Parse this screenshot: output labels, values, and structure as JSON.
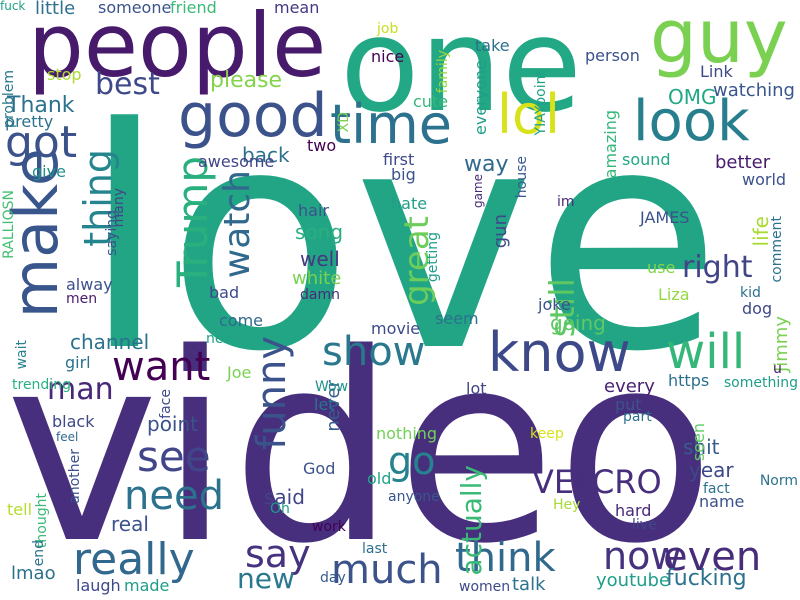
{
  "words": [
    {
      "t": "love",
      "c": "#21a585",
      "o": "h"
    },
    {
      "t": "video",
      "c": "#472f7d",
      "o": "h"
    },
    {
      "t": "one",
      "c": "#22a884",
      "o": "h"
    },
    {
      "t": "people",
      "c": "#481a6c",
      "o": "h"
    },
    {
      "t": "guy",
      "c": "#7ad151",
      "o": "h"
    },
    {
      "t": "make",
      "c": "#39568c",
      "o": "v"
    },
    {
      "t": "good",
      "c": "#3b528b",
      "o": "h"
    },
    {
      "t": "time",
      "c": "#2c728e",
      "o": "h"
    },
    {
      "t": "lol",
      "c": "#d8e219",
      "o": "h"
    },
    {
      "t": "look",
      "c": "#277f8e",
      "o": "h"
    },
    {
      "t": "know",
      "c": "#3e4989",
      "o": "h"
    },
    {
      "t": "will",
      "c": "#35b779",
      "o": "h"
    },
    {
      "t": "Trump",
      "c": "#2ab07f",
      "o": "v"
    },
    {
      "t": "thing",
      "c": "#25858e",
      "o": "v"
    },
    {
      "t": "got",
      "c": "#3b528b",
      "o": "h"
    },
    {
      "t": "best",
      "c": "#3e4989",
      "o": "h"
    },
    {
      "t": "want",
      "c": "#440154",
      "o": "h"
    },
    {
      "t": "right",
      "c": "#414487",
      "o": "h"
    },
    {
      "t": "show",
      "c": "#2a788e",
      "o": "h"
    },
    {
      "t": "watch",
      "c": "#31688e",
      "o": "v"
    },
    {
      "t": "funny",
      "c": "#3b528b",
      "o": "v"
    },
    {
      "t": "see",
      "c": "#404688",
      "o": "h"
    },
    {
      "t": "need",
      "c": "#2c728e",
      "o": "h"
    },
    {
      "t": "really",
      "c": "#31688e",
      "o": "h"
    },
    {
      "t": "say",
      "c": "#46327e",
      "o": "h"
    },
    {
      "t": "much",
      "c": "#3b528b",
      "o": "h"
    },
    {
      "t": "think",
      "c": "#31688e",
      "o": "h"
    },
    {
      "t": "now",
      "c": "#46327e",
      "o": "h"
    },
    {
      "t": "even",
      "c": "#472c7a",
      "o": "h"
    },
    {
      "t": "VELCRO",
      "c": "#472f7d",
      "o": "h"
    },
    {
      "t": "go",
      "c": "#26828e",
      "o": "h"
    },
    {
      "t": "great",
      "c": "#6ccd5a",
      "o": "v"
    },
    {
      "t": "still",
      "c": "#5ec962",
      "o": "v"
    },
    {
      "t": "man",
      "c": "#482878",
      "o": "h"
    },
    {
      "t": "new",
      "c": "#2a788e",
      "o": "h"
    },
    {
      "t": "fucking",
      "c": "#2c728e",
      "o": "h"
    },
    {
      "t": "actually",
      "c": "#3aba76",
      "o": "v"
    },
    {
      "t": "please",
      "c": "#84d44b",
      "o": "h"
    },
    {
      "t": "Thank",
      "c": "#2c728e",
      "o": "h"
    },
    {
      "t": "back",
      "c": "#2d708e",
      "o": "h"
    },
    {
      "t": "way",
      "c": "#31688e",
      "o": "h"
    },
    {
      "t": "OMG",
      "c": "#22a884",
      "o": "h"
    },
    {
      "t": "gun",
      "c": "#3e4989",
      "o": "v"
    },
    {
      "t": "song",
      "c": "#29af7f",
      "o": "h"
    },
    {
      "t": "well",
      "c": "#453781",
      "o": "h"
    },
    {
      "t": "white",
      "c": "#7ad151",
      "o": "h"
    },
    {
      "t": "channel",
      "c": "#2c728e",
      "o": "h"
    },
    {
      "t": "going",
      "c": "#5ec962",
      "o": "h"
    },
    {
      "t": "year",
      "c": "#3e4989",
      "o": "h"
    },
    {
      "t": "shit",
      "c": "#365c8d",
      "o": "h"
    },
    {
      "t": "life",
      "c": "#a8db34",
      "o": "v"
    },
    {
      "t": "said",
      "c": "#414487",
      "o": "h"
    },
    {
      "t": "never",
      "c": "#365c8d",
      "o": "v"
    },
    {
      "t": "point",
      "c": "#3b528b",
      "o": "h"
    },
    {
      "t": "every",
      "c": "#482173",
      "o": "h"
    },
    {
      "t": "real",
      "c": "#3b528b",
      "o": "h"
    },
    {
      "t": "youtube",
      "c": "#1f9e89",
      "o": "h"
    },
    {
      "t": "little",
      "c": "#2d708e",
      "o": "h"
    },
    {
      "t": "someone",
      "c": "#3b528b",
      "o": "h"
    },
    {
      "t": "friend",
      "c": "#3aba76",
      "o": "h"
    },
    {
      "t": "mean",
      "c": "#453781",
      "o": "h"
    },
    {
      "t": "job",
      "c": "#c8e020",
      "o": "h"
    },
    {
      "t": "nice",
      "c": "#440154",
      "o": "h"
    },
    {
      "t": "take",
      "c": "#2d708e",
      "o": "h"
    },
    {
      "t": "YIAYpoint",
      "c": "#1fa187",
      "o": "v"
    },
    {
      "t": "person",
      "c": "#3b528b",
      "o": "h"
    },
    {
      "t": "Link",
      "c": "#3e4989",
      "o": "h"
    },
    {
      "t": "watching",
      "c": "#39568c",
      "o": "h"
    },
    {
      "t": "problem",
      "c": "#2a788e",
      "o": "v"
    },
    {
      "t": "stop",
      "c": "#a8db34",
      "o": "h"
    },
    {
      "t": "family",
      "c": "#93d741",
      "o": "v"
    },
    {
      "t": "everyone",
      "c": "#1f9e89",
      "o": "v"
    },
    {
      "t": "XD",
      "c": "#7ad151",
      "o": "v"
    },
    {
      "t": "cute",
      "c": "#35b779",
      "o": "h"
    },
    {
      "t": "pretty",
      "c": "#2c728e",
      "o": "h"
    },
    {
      "t": "two",
      "c": "#440154",
      "o": "h"
    },
    {
      "t": "awesome",
      "c": "#414487",
      "o": "h"
    },
    {
      "t": "first",
      "c": "#3e4989",
      "o": "h"
    },
    {
      "t": "big",
      "c": "#3b528b",
      "o": "h"
    },
    {
      "t": "amazing",
      "c": "#35b779",
      "o": "v"
    },
    {
      "t": "sound",
      "c": "#22a884",
      "o": "h"
    },
    {
      "t": "better",
      "c": "#481a6c",
      "o": "h"
    },
    {
      "t": "world",
      "c": "#3b528b",
      "o": "h"
    },
    {
      "t": "give",
      "c": "#21918c",
      "o": "h"
    },
    {
      "t": "many",
      "c": "#404688",
      "o": "v"
    },
    {
      "t": "RALLIOSN",
      "c": "#44bf70",
      "o": "v"
    },
    {
      "t": "hair",
      "c": "#3b528b",
      "o": "h"
    },
    {
      "t": "hate",
      "c": "#1f9e89",
      "o": "h"
    },
    {
      "t": "game",
      "c": "#482878",
      "o": "v"
    },
    {
      "t": "house",
      "c": "#365c8d",
      "o": "v"
    },
    {
      "t": "im",
      "c": "#482878",
      "o": "h"
    },
    {
      "t": "JAMES",
      "c": "#3b528b",
      "o": "h"
    },
    {
      "t": "comment",
      "c": "#2c728e",
      "o": "v"
    },
    {
      "t": "saying",
      "c": "#3b528b",
      "o": "v"
    },
    {
      "t": "alway",
      "c": "#3b528b",
      "o": "h"
    },
    {
      "t": "men",
      "c": "#481a6c",
      "o": "h"
    },
    {
      "t": "bad",
      "c": "#3e4989",
      "o": "h"
    },
    {
      "t": "damn",
      "c": "#472c7a",
      "o": "h"
    },
    {
      "t": "getting",
      "c": "#1f9e89",
      "o": "v"
    },
    {
      "t": "use",
      "c": "#84d44b",
      "o": "h"
    },
    {
      "t": "Liza",
      "c": "#93d741",
      "o": "h"
    },
    {
      "t": "kid",
      "c": "#2c728e",
      "o": "h"
    },
    {
      "t": "dog",
      "c": "#3e4989",
      "o": "h"
    },
    {
      "t": "come",
      "c": "#31688e",
      "o": "h"
    },
    {
      "t": "joke",
      "c": "#3b528b",
      "o": "h"
    },
    {
      "t": "seem",
      "c": "#2c728e",
      "o": "h"
    },
    {
      "t": "movie",
      "c": "#3e4989",
      "o": "h"
    },
    {
      "t": "Jimmy",
      "c": "#7ad151",
      "o": "v"
    },
    {
      "t": "next",
      "c": "#20a486",
      "o": "h"
    },
    {
      "t": "wait",
      "c": "#26828e",
      "o": "v"
    },
    {
      "t": "girl",
      "c": "#2c728e",
      "o": "h"
    },
    {
      "t": "Joe",
      "c": "#7ad151",
      "o": "h"
    },
    {
      "t": "Wow",
      "c": "#21918c",
      "o": "h"
    },
    {
      "t": "trending",
      "c": "#2ab07f",
      "o": "h"
    },
    {
      "t": "let",
      "c": "#2c728e",
      "o": "h"
    },
    {
      "t": "lot",
      "c": "#404688",
      "o": "h"
    },
    {
      "t": "https",
      "c": "#2d708e",
      "o": "h"
    },
    {
      "t": "something",
      "c": "#1f9e89",
      "o": "h"
    },
    {
      "t": "u",
      "c": "#481a6c",
      "o": "h"
    },
    {
      "t": "face",
      "c": "#3e4989",
      "o": "v"
    },
    {
      "t": "put",
      "c": "#3b528b",
      "o": "h"
    },
    {
      "t": "black",
      "c": "#3e4989",
      "o": "h"
    },
    {
      "t": "feel",
      "c": "#31688e",
      "o": "h"
    },
    {
      "t": "nothing",
      "c": "#73d056",
      "o": "h"
    },
    {
      "t": "keep",
      "c": "#d8e219",
      "o": "h"
    },
    {
      "t": "part",
      "c": "#2d708e",
      "o": "h"
    },
    {
      "t": "seen",
      "c": "#5ec962",
      "o": "v"
    },
    {
      "t": "Norm",
      "c": "#2c728e",
      "o": "h"
    },
    {
      "t": "another",
      "c": "#3b528b",
      "o": "v"
    },
    {
      "t": "God",
      "c": "#3b528b",
      "o": "h"
    },
    {
      "t": "old",
      "c": "#20a486",
      "o": "h"
    },
    {
      "t": "anyone",
      "c": "#39568c",
      "o": "h"
    },
    {
      "t": "Hey",
      "c": "#a8db34",
      "o": "h"
    },
    {
      "t": "fact",
      "c": "#2c728e",
      "o": "h"
    },
    {
      "t": "name",
      "c": "#3b528b",
      "o": "h"
    },
    {
      "t": "hard",
      "c": "#482878",
      "o": "h"
    },
    {
      "t": "live",
      "c": "#404688",
      "o": "h"
    },
    {
      "t": "tell",
      "c": "#b5de2b",
      "o": "h"
    },
    {
      "t": "thought",
      "c": "#3aba76",
      "o": "v"
    },
    {
      "t": "end",
      "c": "#2c728e",
      "o": "v"
    },
    {
      "t": "Oh",
      "c": "#1f9e89",
      "o": "h"
    },
    {
      "t": "work",
      "c": "#440154",
      "o": "h"
    },
    {
      "t": "lmao",
      "c": "#2c728e",
      "o": "h"
    },
    {
      "t": "day",
      "c": "#365c8d",
      "o": "h"
    },
    {
      "t": "last",
      "c": "#2d708e",
      "o": "h"
    },
    {
      "t": "laugh",
      "c": "#3e4989",
      "o": "h"
    },
    {
      "t": "made",
      "c": "#1f9e89",
      "o": "h"
    },
    {
      "t": "women",
      "c": "#3e4989",
      "o": "h"
    },
    {
      "t": "talk",
      "c": "#2c728e",
      "o": "h"
    },
    {
      "t": "fuck",
      "c": "#1f9e89",
      "o": "h"
    }
  ]
}
